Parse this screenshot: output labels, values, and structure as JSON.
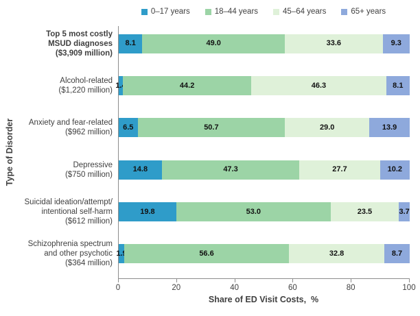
{
  "chart_data": {
    "type": "bar",
    "variant": "horizontal-stacked",
    "title": "",
    "xlabel": "Share of ED Visit Costs,  %",
    "ylabel": "Type of Disorder",
    "xlim": [
      0,
      100
    ],
    "xticks": [
      0,
      20,
      40,
      60,
      80,
      100
    ],
    "legend_position": "top",
    "grid": false,
    "categories": [
      {
        "label": "Top 5 most costly\nMSUD diagnoses\n($3,909 million)",
        "bold": true
      },
      {
        "label": "Alcohol-related\n($1,220 million)",
        "bold": false
      },
      {
        "label": "Anxiety  and fear-related\n($962 million)",
        "bold": false
      },
      {
        "label": "Depressive\n($750 million)",
        "bold": false
      },
      {
        "label": "Suicidal ideation/attempt/\nintentional self-harm\n($612 million)",
        "bold": false
      },
      {
        "label": "Schizophrenia spectrum\nand other psychotic\n($364 million)",
        "bold": false
      }
    ],
    "series": [
      {
        "name": "0–17 years",
        "color": "#2F9CC9",
        "values": [
          8.1,
          1.4,
          6.5,
          14.8,
          19.8,
          1.9
        ]
      },
      {
        "name": "18–44 years",
        "color": "#9CD4A6",
        "values": [
          49.0,
          44.2,
          50.7,
          47.3,
          53.0,
          56.6
        ]
      },
      {
        "name": "45–64 years",
        "color": "#DFF1D9",
        "values": [
          33.6,
          46.3,
          29.0,
          27.7,
          23.5,
          32.8
        ]
      },
      {
        "name": "65+ years",
        "color": "#8EA9DC",
        "values": [
          9.3,
          8.1,
          13.9,
          10.2,
          3.7,
          8.7
        ]
      }
    ],
    "value_decimals": 1
  },
  "style": {
    "axis_color": "#8c8c8c",
    "label_color": "#3f3f3f",
    "data_label_color": "#111111"
  }
}
